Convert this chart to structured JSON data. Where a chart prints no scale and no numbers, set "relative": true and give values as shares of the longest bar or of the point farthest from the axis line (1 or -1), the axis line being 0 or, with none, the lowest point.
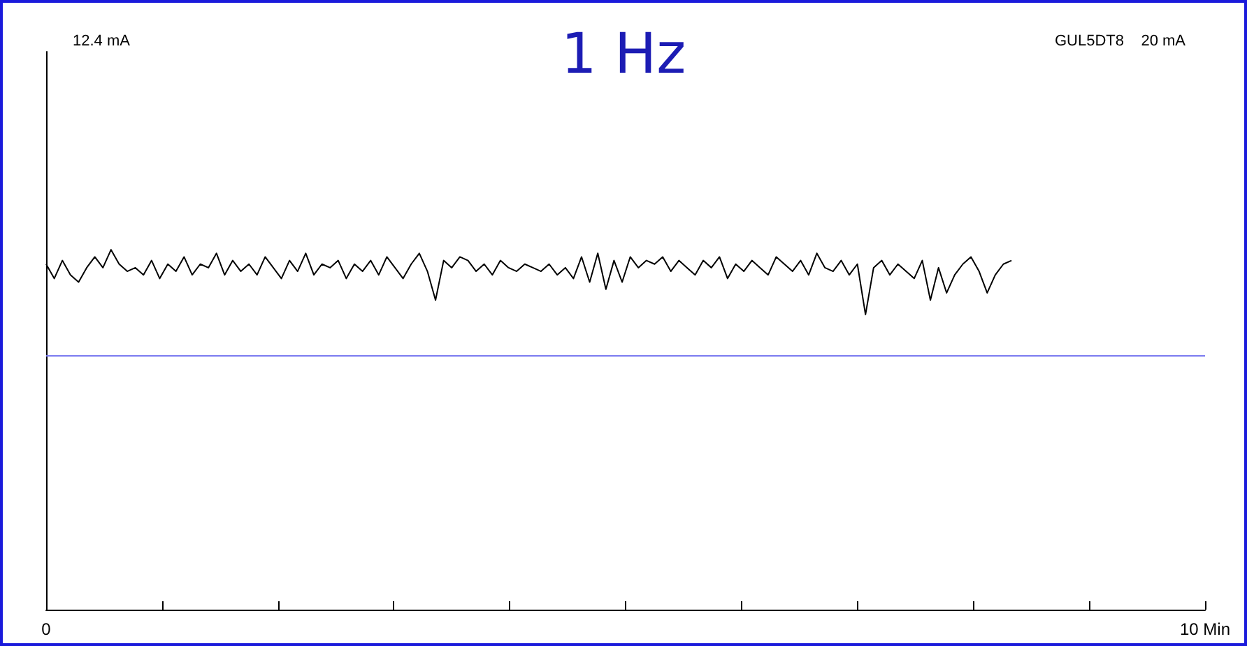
{
  "chart_data": {
    "type": "line",
    "title": "1 Hz",
    "relative": true,
    "annotations": [
      "12.4 mA",
      "GUL5DT8    20 mA"
    ],
    "xlim": [
      0,
      10
    ],
    "xticks": [
      {
        "value": 0,
        "label": "0"
      },
      {
        "value": 1,
        "label": null
      },
      {
        "value": 2,
        "label": null
      },
      {
        "value": 3,
        "label": null
      },
      {
        "value": 4,
        "label": null
      },
      {
        "value": 5,
        "label": null
      },
      {
        "value": 6,
        "label": null
      },
      {
        "value": 7,
        "label": null
      },
      {
        "value": 8,
        "label": null
      },
      {
        "value": 9,
        "label": null
      },
      {
        "value": 10,
        "label": "10 Min"
      }
    ],
    "grid": false,
    "marker": "none",
    "line_style": "solid",
    "ref_lines": [
      {
        "axis": "y",
        "value": 0.705,
        "label": null,
        "color": "#7b7bf0"
      }
    ],
    "series": [
      {
        "color": "#000000",
        "x": [
          0,
          0.07,
          0.14,
          0.21,
          0.28,
          0.35,
          0.42,
          0.49,
          0.56,
          0.63,
          0.7,
          0.77,
          0.84,
          0.91,
          0.98,
          1.05,
          1.12,
          1.19,
          1.26,
          1.33,
          1.4,
          1.47,
          1.54,
          1.61,
          1.68,
          1.75,
          1.82,
          1.89,
          1.96,
          2.03,
          2.1,
          2.17,
          2.24,
          2.31,
          2.38,
          2.45,
          2.52,
          2.59,
          2.66,
          2.73,
          2.8,
          2.87,
          2.94,
          3.01,
          3.08,
          3.15,
          3.22,
          3.29,
          3.36,
          3.43,
          3.5,
          3.57,
          3.64,
          3.71,
          3.78,
          3.85,
          3.92,
          3.99,
          4.06,
          4.13,
          4.2,
          4.27,
          4.34,
          4.41,
          4.48,
          4.55,
          4.62,
          4.69,
          4.76,
          4.83,
          4.9,
          4.97,
          5.04,
          5.11,
          5.18,
          5.25,
          5.32,
          5.39,
          5.46,
          5.53,
          5.6,
          5.67,
          5.74,
          5.81,
          5.88,
          5.95,
          6.02,
          6.09,
          6.16,
          6.23,
          6.3,
          6.37,
          6.44,
          6.51,
          6.58,
          6.65,
          6.72,
          6.79,
          6.86,
          6.93,
          7,
          7.07,
          7.14,
          7.21,
          7.28,
          7.35,
          7.42,
          7.49,
          7.56,
          7.63,
          7.7,
          7.77,
          7.84,
          7.91,
          7.98,
          8.05,
          8.12,
          8.19,
          8.26,
          8.33
        ],
        "values": [
          0.96,
          0.92,
          0.97,
          0.93,
          0.91,
          0.95,
          0.98,
          0.95,
          1.0,
          0.96,
          0.94,
          0.95,
          0.93,
          0.97,
          0.92,
          0.96,
          0.94,
          0.98,
          0.93,
          0.96,
          0.95,
          0.99,
          0.93,
          0.97,
          0.94,
          0.96,
          0.93,
          0.98,
          0.95,
          0.92,
          0.97,
          0.94,
          0.99,
          0.93,
          0.96,
          0.95,
          0.97,
          0.92,
          0.96,
          0.94,
          0.97,
          0.93,
          0.98,
          0.95,
          0.92,
          0.96,
          0.99,
          0.94,
          0.86,
          0.97,
          0.95,
          0.98,
          0.97,
          0.94,
          0.96,
          0.93,
          0.97,
          0.95,
          0.94,
          0.96,
          0.95,
          0.94,
          0.96,
          0.93,
          0.95,
          0.92,
          0.98,
          0.91,
          0.99,
          0.89,
          0.97,
          0.91,
          0.98,
          0.95,
          0.97,
          0.96,
          0.98,
          0.94,
          0.97,
          0.95,
          0.93,
          0.97,
          0.95,
          0.98,
          0.92,
          0.96,
          0.94,
          0.97,
          0.95,
          0.93,
          0.98,
          0.96,
          0.94,
          0.97,
          0.93,
          0.99,
          0.95,
          0.94,
          0.97,
          0.93,
          0.96,
          0.82,
          0.95,
          0.97,
          0.93,
          0.96,
          0.94,
          0.92,
          0.97,
          0.86,
          0.95,
          0.88,
          0.93,
          0.96,
          0.98,
          0.94,
          0.88,
          0.93,
          0.96,
          0.97
        ]
      }
    ]
  }
}
